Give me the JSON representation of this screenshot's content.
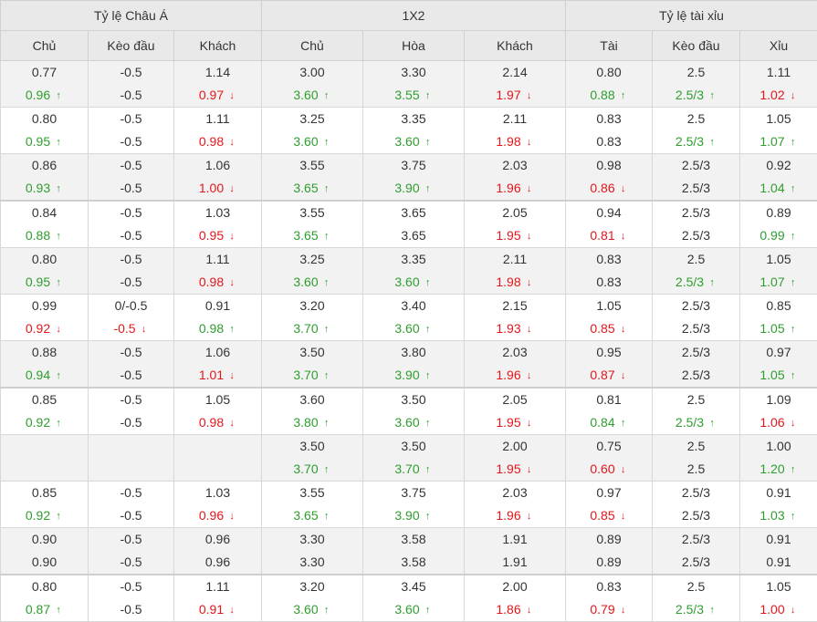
{
  "header": {
    "groups": [
      "Tỷ lệ Châu Á",
      "1X2",
      "Tỷ lệ tài xỉu"
    ],
    "columns": [
      "Chủ",
      "Kèo đầu",
      "Khách",
      "Chủ",
      "Hòa",
      "Khách",
      "Tài",
      "Kèo đầu",
      "Xỉu"
    ]
  },
  "colors": {
    "up": "#2e9e2e",
    "down": "#e4161b",
    "header_bg": "#e9e9e9",
    "alt_row_bg": "#f2f2f2"
  },
  "icons": {
    "up": "arrow-up-icon",
    "down": "arrow-down-icon"
  },
  "rows": [
    {
      "cells": [
        [
          "0.77",
          "0.96",
          "up"
        ],
        [
          "-0.5",
          "-0.5",
          ""
        ],
        [
          "1.14",
          "0.97",
          "down"
        ],
        [
          "3.00",
          "3.60",
          "up"
        ],
        [
          "3.30",
          "3.55",
          "up"
        ],
        [
          "2.14",
          "1.97",
          "down"
        ],
        [
          "0.80",
          "0.88",
          "up"
        ],
        [
          "2.5",
          "2.5/3",
          "up"
        ],
        [
          "1.11",
          "1.02",
          "down"
        ]
      ]
    },
    {
      "cells": [
        [
          "0.80",
          "0.95",
          "up"
        ],
        [
          "-0.5",
          "-0.5",
          ""
        ],
        [
          "1.11",
          "0.98",
          "down"
        ],
        [
          "3.25",
          "3.60",
          "up"
        ],
        [
          "3.35",
          "3.60",
          "up"
        ],
        [
          "2.11",
          "1.98",
          "down"
        ],
        [
          "0.83",
          "0.83",
          ""
        ],
        [
          "2.5",
          "2.5/3",
          "up"
        ],
        [
          "1.05",
          "1.07",
          "up"
        ]
      ]
    },
    {
      "cells": [
        [
          "0.86",
          "0.93",
          "up"
        ],
        [
          "-0.5",
          "-0.5",
          ""
        ],
        [
          "1.06",
          "1.00",
          "down"
        ],
        [
          "3.55",
          "3.65",
          "up"
        ],
        [
          "3.75",
          "3.90",
          "up"
        ],
        [
          "2.03",
          "1.96",
          "down"
        ],
        [
          "0.98",
          "0.86",
          "down"
        ],
        [
          "2.5/3",
          "2.5/3",
          ""
        ],
        [
          "0.92",
          "1.04",
          "up"
        ]
      ]
    },
    {
      "cells": [
        [
          "0.84",
          "0.88",
          "up"
        ],
        [
          "-0.5",
          "-0.5",
          ""
        ],
        [
          "1.03",
          "0.95",
          "down"
        ],
        [
          "3.55",
          "3.65",
          "up"
        ],
        [
          "3.65",
          "3.65",
          ""
        ],
        [
          "2.05",
          "1.95",
          "down"
        ],
        [
          "0.94",
          "0.81",
          "down"
        ],
        [
          "2.5/3",
          "2.5/3",
          ""
        ],
        [
          "0.89",
          "0.99",
          "up"
        ]
      ]
    },
    {
      "cells": [
        [
          "0.80",
          "0.95",
          "up"
        ],
        [
          "-0.5",
          "-0.5",
          ""
        ],
        [
          "1.11",
          "0.98",
          "down"
        ],
        [
          "3.25",
          "3.60",
          "up"
        ],
        [
          "3.35",
          "3.60",
          "up"
        ],
        [
          "2.11",
          "1.98",
          "down"
        ],
        [
          "0.83",
          "0.83",
          ""
        ],
        [
          "2.5",
          "2.5/3",
          "up"
        ],
        [
          "1.05",
          "1.07",
          "up"
        ]
      ]
    },
    {
      "cells": [
        [
          "0.99",
          "0.92",
          "down"
        ],
        [
          "0/-0.5",
          "-0.5",
          "down"
        ],
        [
          "0.91",
          "0.98",
          "up"
        ],
        [
          "3.20",
          "3.70",
          "up"
        ],
        [
          "3.40",
          "3.60",
          "up"
        ],
        [
          "2.15",
          "1.93",
          "down"
        ],
        [
          "1.05",
          "0.85",
          "down"
        ],
        [
          "2.5/3",
          "2.5/3",
          ""
        ],
        [
          "0.85",
          "1.05",
          "up"
        ]
      ]
    },
    {
      "cells": [
        [
          "0.88",
          "0.94",
          "up"
        ],
        [
          "-0.5",
          "-0.5",
          ""
        ],
        [
          "1.06",
          "1.01",
          "down"
        ],
        [
          "3.50",
          "3.70",
          "up"
        ],
        [
          "3.80",
          "3.90",
          "up"
        ],
        [
          "2.03",
          "1.96",
          "down"
        ],
        [
          "0.95",
          "0.87",
          "down"
        ],
        [
          "2.5/3",
          "2.5/3",
          ""
        ],
        [
          "0.97",
          "1.05",
          "up"
        ]
      ]
    },
    {
      "cells": [
        [
          "0.85",
          "0.92",
          "up"
        ],
        [
          "-0.5",
          "-0.5",
          ""
        ],
        [
          "1.05",
          "0.98",
          "down"
        ],
        [
          "3.60",
          "3.80",
          "up"
        ],
        [
          "3.50",
          "3.60",
          "up"
        ],
        [
          "2.05",
          "1.95",
          "down"
        ],
        [
          "0.81",
          "0.84",
          "up"
        ],
        [
          "2.5",
          "2.5/3",
          "up"
        ],
        [
          "1.09",
          "1.06",
          "down"
        ]
      ]
    },
    {
      "cells": [
        [
          "",
          "",
          ""
        ],
        [
          "",
          "",
          ""
        ],
        [
          "",
          "",
          ""
        ],
        [
          "3.50",
          "3.70",
          "up"
        ],
        [
          "3.50",
          "3.70",
          "up"
        ],
        [
          "2.00",
          "1.95",
          "down"
        ],
        [
          "0.75",
          "0.60",
          "down"
        ],
        [
          "2.5",
          "2.5",
          ""
        ],
        [
          "1.00",
          "1.20",
          "up"
        ]
      ]
    },
    {
      "cells": [
        [
          "0.85",
          "0.92",
          "up"
        ],
        [
          "-0.5",
          "-0.5",
          ""
        ],
        [
          "1.03",
          "0.96",
          "down"
        ],
        [
          "3.55",
          "3.65",
          "up"
        ],
        [
          "3.75",
          "3.90",
          "up"
        ],
        [
          "2.03",
          "1.96",
          "down"
        ],
        [
          "0.97",
          "0.85",
          "down"
        ],
        [
          "2.5/3",
          "2.5/3",
          ""
        ],
        [
          "0.91",
          "1.03",
          "up"
        ]
      ]
    },
    {
      "cells": [
        [
          "0.90",
          "0.90",
          ""
        ],
        [
          "-0.5",
          "-0.5",
          ""
        ],
        [
          "0.96",
          "0.96",
          ""
        ],
        [
          "3.30",
          "3.30",
          ""
        ],
        [
          "3.58",
          "3.58",
          ""
        ],
        [
          "1.91",
          "1.91",
          ""
        ],
        [
          "0.89",
          "0.89",
          ""
        ],
        [
          "2.5/3",
          "2.5/3",
          ""
        ],
        [
          "0.91",
          "0.91",
          ""
        ]
      ]
    },
    {
      "cells": [
        [
          "0.80",
          "0.87",
          "up"
        ],
        [
          "-0.5",
          "-0.5",
          ""
        ],
        [
          "1.11",
          "0.91",
          "down"
        ],
        [
          "3.20",
          "3.60",
          "up"
        ],
        [
          "3.45",
          "3.60",
          "up"
        ],
        [
          "2.00",
          "1.86",
          "down"
        ],
        [
          "0.83",
          "0.79",
          "down"
        ],
        [
          "2.5",
          "2.5/3",
          "up"
        ],
        [
          "1.05",
          "1.00",
          "down"
        ]
      ]
    }
  ]
}
